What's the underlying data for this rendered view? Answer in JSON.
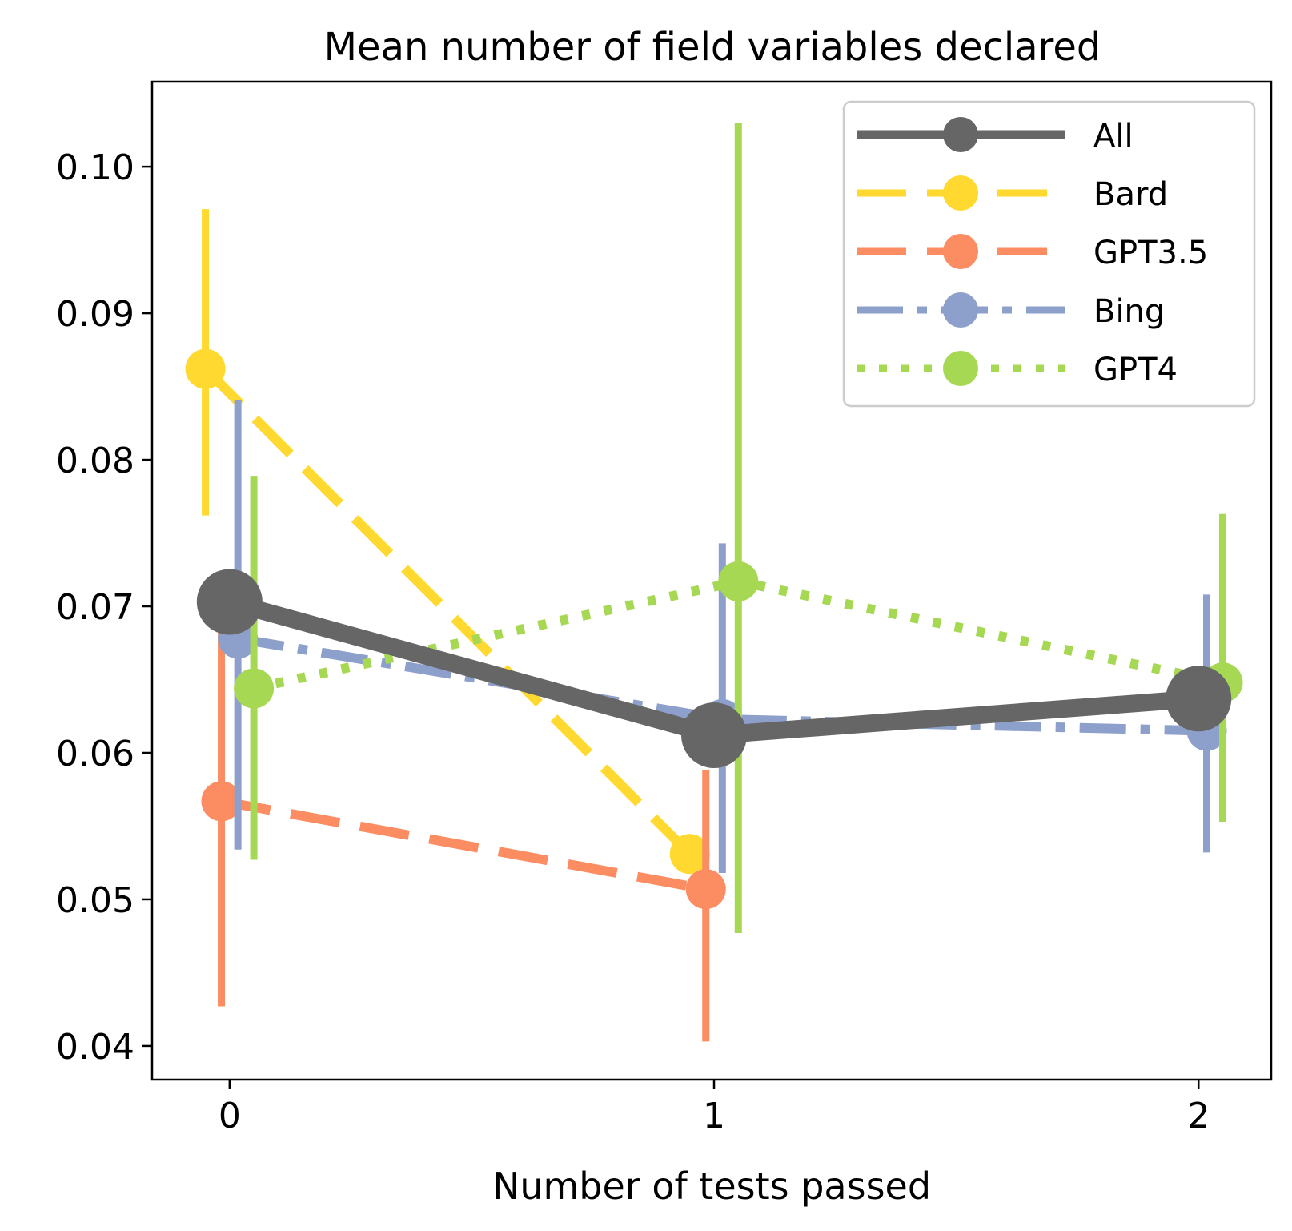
{
  "chart_data": {
    "type": "line",
    "title": "Mean number of field variables declared",
    "xlabel": "Number of tests passed",
    "ylabel": "",
    "x_ticks": [
      "0",
      "1",
      "2"
    ],
    "y_ticks": [
      "0.04",
      "0.05",
      "0.06",
      "0.07",
      "0.08",
      "0.09",
      "0.10"
    ],
    "xlim": [
      -0.16,
      2.15
    ],
    "ylim": [
      0.0377,
      0.1058
    ],
    "legend_position": "top-right",
    "error_bars": true,
    "series": [
      {
        "name": "All",
        "color": "#666666",
        "line_style": "solid",
        "x": [
          0,
          1,
          2
        ],
        "y": [
          0.0703,
          0.0612,
          0.0637
        ],
        "err_low": [
          null,
          null,
          null
        ],
        "err_high": [
          null,
          null,
          null
        ]
      },
      {
        "name": "Bard",
        "color": "#FFD92F",
        "line_style": "dashed",
        "x": [
          -0.05,
          0.95
        ],
        "y": [
          0.0862,
          0.0531
        ],
        "err_low": [
          0.0762,
          null
        ],
        "err_high": [
          0.0971,
          null
        ]
      },
      {
        "name": "GPT3.5",
        "color": "#FC8D62",
        "line_style": "dashed",
        "x": [
          -0.017,
          0.983
        ],
        "y": [
          0.0567,
          0.0507
        ],
        "err_low": [
          0.0427,
          0.0403
        ],
        "err_high": [
          0.0703,
          0.0588
        ]
      },
      {
        "name": "Bing",
        "color": "#8DA0CB",
        "line_style": "dashdot",
        "x": [
          0.017,
          1.017,
          2.017
        ],
        "y": [
          0.0678,
          0.0623,
          0.0615
        ],
        "err_low": [
          0.0534,
          0.0518,
          0.0532
        ],
        "err_high": [
          0.0841,
          0.0743,
          0.0708
        ]
      },
      {
        "name": "GPT4",
        "color": "#A6D854",
        "line_style": "dotted",
        "x": [
          0.05,
          1.05,
          2.05
        ],
        "y": [
          0.0644,
          0.0717,
          0.0648
        ],
        "err_low": [
          0.0527,
          0.0477,
          0.0553
        ],
        "err_high": [
          0.0789,
          0.103,
          0.0763
        ]
      }
    ]
  }
}
